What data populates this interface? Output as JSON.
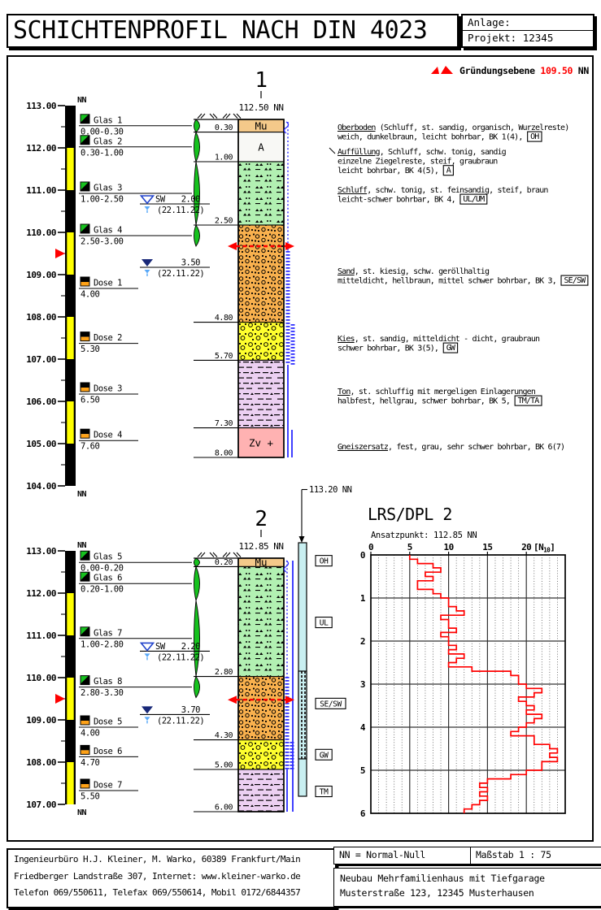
{
  "header": {
    "title": "SCHICHTENPROFIL NACH DIN 4023",
    "anlage": "Anlage:",
    "projekt": "Projekt: 12345"
  },
  "foundation_note": {
    "label": "Gründungsebene",
    "value": "109.50",
    "unit": "NN"
  },
  "colors": {
    "red": "#ff0000",
    "green": "#16c21e",
    "dose_orange": "#ffa217",
    "blue_dashed": "#2a2aff",
    "water_open_stroke": "#2244cc",
    "water_filled": "#182878",
    "water_light": "#58a8f8",
    "scale_yellow": "#ffff00",
    "mu": "#f4c98a",
    "a": "#f8f8f5",
    "zv": "#ffb2b2",
    "dpl_bar": "#c9eff1"
  },
  "profiles": [
    {
      "id": "1",
      "head_elevation": "112.50 NN",
      "scale": {
        "unit": "NN",
        "top_elev": 113.0,
        "labels": [
          "113.00",
          "112.00",
          "111.00",
          "110.00",
          "109.00",
          "108.00",
          "107.00",
          "106.00",
          "105.00",
          "104.00"
        ],
        "yellow_segments_m": [
          [
            1,
            2
          ],
          [
            3,
            4
          ],
          [
            5,
            6
          ],
          [
            7,
            8
          ]
        ]
      },
      "column_layers": [
        {
          "from": 0,
          "to": 0.3,
          "label": "Mu",
          "fill": "mu",
          "depth_label": "0.30"
        },
        {
          "from": 0.3,
          "to": 1,
          "label": "A",
          "fill": "a",
          "depth_label": "1.00"
        },
        {
          "from": 1,
          "to": 2.5,
          "label": "",
          "fill": "schluff",
          "depth_label": "2.50"
        },
        {
          "from": 2.5,
          "to": 4.8,
          "label": "",
          "fill": "sand",
          "depth_label": "4.80"
        },
        {
          "from": 4.8,
          "to": 5.7,
          "label": "",
          "fill": "kies",
          "depth_label": "5.70"
        },
        {
          "from": 5.7,
          "to": 7.3,
          "label": "",
          "fill": "ton",
          "depth_label": "7.30"
        },
        {
          "from": 7.3,
          "to": 8,
          "label": "Zv +",
          "fill": "zv",
          "depth_label": "8.00"
        }
      ],
      "samples": [
        {
          "kind": "glas",
          "name": "Glas 1",
          "range": "0.00-0.30",
          "from": 0,
          "to": 0.3
        },
        {
          "kind": "glas",
          "name": "Glas 2",
          "range": "0.30-1.00",
          "from": 0.3,
          "to": 1
        },
        {
          "kind": "glas",
          "name": "Glas 3",
          "range": "1.00-2.50",
          "from": 1,
          "to": 2.5
        },
        {
          "kind": "glas",
          "name": "Glas 4",
          "range": "2.50-3.00",
          "from": 2.5,
          "to": 3
        },
        {
          "kind": "dose",
          "name": "Dose 1",
          "range": "4.00",
          "depth": 4
        },
        {
          "kind": "dose",
          "name": "Dose 2",
          "range": "5.30",
          "depth": 5.3
        },
        {
          "kind": "dose",
          "name": "Dose 3",
          "range": "6.50",
          "depth": 6.5
        },
        {
          "kind": "dose",
          "name": "Dose 4",
          "range": "7.60",
          "depth": 7.6
        }
      ],
      "water_levels": [
        {
          "symbol": "open",
          "label": "SW",
          "value": "2.00",
          "date": "(22.11.22)",
          "depth": 2
        },
        {
          "symbol": "filled",
          "label": "",
          "value": "3.50",
          "date": "(22.11.22)",
          "depth": 3.5
        }
      ],
      "foundation_depth_m": 3.0,
      "descriptions": [
        {
          "y": 160,
          "head": "Oberboden",
          "head_rest": " (Schluff, st. sandig, organisch, Wurzelreste)",
          "mid_lines": [],
          "tail": "weich, dunkelbraun, leicht bohrbar, BK 1(4), ",
          "box": "OH"
        },
        {
          "y": 190,
          "head": "Auffüllung",
          "head_rest": ", Schluff, schw. tonig, sandig",
          "mid_lines": [
            "einzelne Ziegelreste, steif, graubraun"
          ],
          "tail": "leicht bohrbar, BK 4(5), ",
          "box": "A",
          "leader": true
        },
        {
          "y": 237,
          "head": "Schluff",
          "head_rest": ", schw. tonig, st. feinsandig, steif, braun",
          "mid_lines": [],
          "tail": "leicht-schwer bohrbar, BK 4, ",
          "box": "UL/UM"
        },
        {
          "y": 337,
          "head": "Sand",
          "head_rest": ", st. kiesig, schw. geröllhaltig",
          "mid_lines": [],
          "tail": "mitteldicht, hellbraun, mittel schwer bohrbar, BK 3, ",
          "box": "SE/SW"
        },
        {
          "y": 420,
          "head": "Kies",
          "head_rest": ", st. sandig, mitteldicht - dicht, graubraun",
          "mid_lines": [],
          "tail": "schwer bohrbar, BK 3(5), ",
          "box": "GW"
        },
        {
          "y": 485,
          "head": "Ton",
          "head_rest": ", st. schluffig mit mergeligen Einlagerungen",
          "mid_lines": [],
          "tail": "halbfest, hellgrau, schwer bohrbar, BK 5, ",
          "box": "TM/TA"
        },
        {
          "y": 553,
          "head": "Gneiszersatz",
          "head_rest": ", fest, grau, sehr schwer bohrbar, BK 6(7)",
          "mid_lines": [],
          "tail": "",
          "box": ""
        }
      ]
    },
    {
      "id": "2",
      "head_elevation": "112.85 NN",
      "scale": {
        "unit": "NN",
        "top_elev": 113.0,
        "labels": [
          "113.00",
          "112.00",
          "111.00",
          "110.00",
          "109.00",
          "108.00",
          "107.00"
        ],
        "yellow_segments_m": [
          [
            1,
            2
          ],
          [
            3,
            4
          ],
          [
            5,
            6
          ]
        ]
      },
      "column_layers": [
        {
          "from": 0,
          "to": 0.2,
          "label": "Mu",
          "fill": "mu",
          "depth_label": "0.20"
        },
        {
          "from": 0.2,
          "to": 2.8,
          "label": "",
          "fill": "schluff",
          "depth_label": "2.80"
        },
        {
          "from": 2.8,
          "to": 4.3,
          "label": "",
          "fill": "sand",
          "depth_label": "4.30"
        },
        {
          "from": 4.3,
          "to": 5,
          "label": "",
          "fill": "kies",
          "depth_label": "5.00"
        },
        {
          "from": 5,
          "to": 6,
          "label": "",
          "fill": "ton",
          "depth_label": "6.00"
        }
      ],
      "samples": [
        {
          "kind": "glas",
          "name": "Glas 5",
          "range": "0.00-0.20",
          "from": 0,
          "to": 0.2
        },
        {
          "kind": "glas",
          "name": "Glas 6",
          "range": "0.20-1.00",
          "from": 0.2,
          "to": 1
        },
        {
          "kind": "glas",
          "name": "Glas 7",
          "range": "1.00-2.80",
          "from": 1,
          "to": 2.8
        },
        {
          "kind": "glas",
          "name": "Glas 8",
          "range": "2.80-3.30",
          "from": 2.8,
          "to": 3.3
        },
        {
          "kind": "dose",
          "name": "Dose 5",
          "range": "4.00",
          "depth": 4
        },
        {
          "kind": "dose",
          "name": "Dose 6",
          "range": "4.70",
          "depth": 4.7
        },
        {
          "kind": "dose",
          "name": "Dose 7",
          "range": "5.50",
          "depth": 5.5
        }
      ],
      "water_levels": [
        {
          "symbol": "open",
          "label": "SW",
          "value": "2.20",
          "date": "(22.11.22)",
          "depth": 2.2
        },
        {
          "symbol": "filled",
          "label": "",
          "value": "3.70",
          "date": "(22.11.22)",
          "depth": 3.7
        }
      ],
      "foundation_depth_m": 3.35,
      "dpl_top_label": "113.20 NN",
      "code_boxes": [
        {
          "label": "OH",
          "depth": 0.06
        },
        {
          "label": "UL",
          "depth": 1.52
        },
        {
          "label": "SE/SW",
          "depth": 3.44
        },
        {
          "label": "GW",
          "depth": 4.65
        },
        {
          "label": "TM",
          "depth": 5.52
        }
      ]
    }
  ],
  "chart_data": {
    "type": "step-line",
    "title": "LRS/DPL 2",
    "subtitle": "Ansatzpunkt: 112.85 NN",
    "x_unit_label": "[N10]",
    "x_ticks": [
      0,
      5,
      10,
      15,
      20
    ],
    "x_max": 25,
    "depth_ticks": [
      0,
      1,
      2,
      3,
      4,
      5,
      6
    ],
    "depth_max": 6,
    "depth_step_m": 0.1,
    "line_color": "#ff0000",
    "values": [
      5,
      6,
      8,
      9,
      7,
      8,
      6,
      6,
      8,
      9,
      10,
      10,
      11,
      12,
      9,
      10,
      10,
      11,
      9,
      10,
      10,
      11,
      10,
      12,
      11,
      10,
      13,
      18,
      19,
      19,
      20,
      22,
      21,
      19,
      20,
      21,
      20,
      22,
      21,
      20,
      19,
      18,
      21,
      21,
      23,
      24,
      23,
      24,
      22,
      22,
      20,
      18,
      15,
      14,
      15,
      14,
      15,
      14,
      13,
      12
    ]
  },
  "footer": {
    "company_lines": [
      "Ingenieurbüro H.J. Kleiner, M. Warko, 60389 Frankfurt/Main",
      "Friedberger Landstraße 307, Internet: www.kleiner-warko.de",
      "Telefon 069/550611, Telefax 069/550614, Mobil 0172/6844357"
    ],
    "nn_note": "NN = Normal-Null",
    "scale_note": "Maßstab 1 : 75",
    "project_lines": [
      "Neubau Mehrfamilienhaus mit Tiefgarage",
      "Musterstraße 123, 12345 Musterhausen"
    ]
  }
}
